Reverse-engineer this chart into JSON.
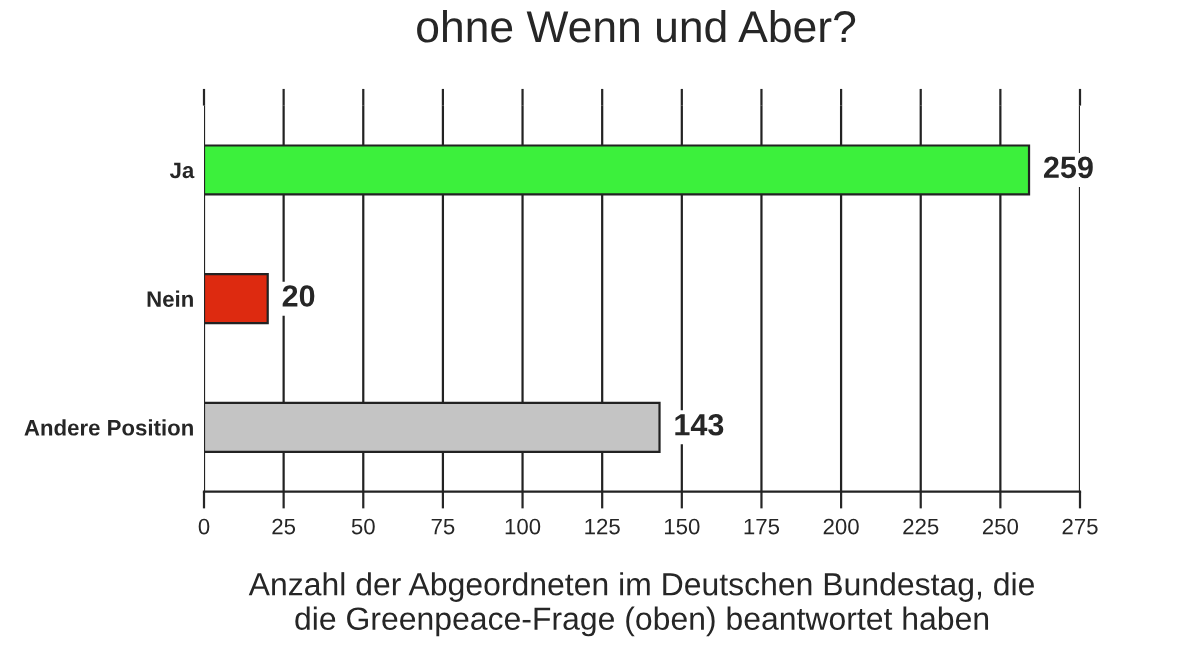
{
  "chart_data": {
    "type": "bar",
    "orientation": "horizontal",
    "title": "ohne Wenn und Aber?",
    "xlabel": "Anzahl der Abgeordneten im Deutschen Bundestag, die\ndie Greenpeace-Frage (oben) beantwortet haben",
    "categories": [
      "Ja",
      "Nein",
      "Andere Position"
    ],
    "values": [
      259,
      20,
      143
    ],
    "colors": [
      "#3cf03c",
      "#dd2a10",
      "#c4c4c4"
    ],
    "xlim": [
      0,
      275
    ],
    "xticks": [
      0,
      25,
      50,
      75,
      100,
      125,
      150,
      175,
      200,
      225,
      250,
      275
    ],
    "grid": "x",
    "data_labels": true
  }
}
